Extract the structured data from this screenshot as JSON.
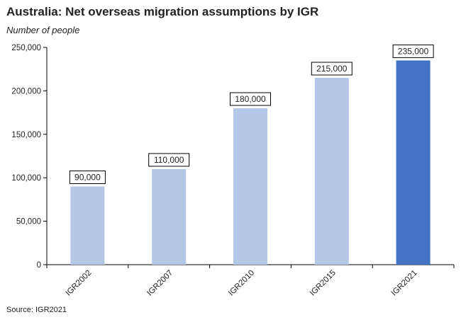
{
  "title": "Australia: Net overseas migration assumptions by IGR",
  "subtitle": "Number of people",
  "source": "Source: IGR2021",
  "chart_data": {
    "type": "bar",
    "categories": [
      "IGR2002",
      "IGR2007",
      "IGR2010",
      "IGR2015",
      "IGR2021"
    ],
    "values": [
      90000,
      110000,
      180000,
      215000,
      235000
    ],
    "data_labels": [
      "90,000",
      "110,000",
      "180,000",
      "215,000",
      "235,000"
    ],
    "ylim": [
      0,
      250000
    ],
    "yticks": [
      0,
      50000,
      100000,
      150000,
      200000,
      250000
    ],
    "ytick_labels": [
      "0",
      "50,000",
      "100,000",
      "150,000",
      "200,000",
      "250,000"
    ],
    "bar_colors": [
      "#b4c7e7",
      "#b4c7e7",
      "#b4c7e7",
      "#b4c7e7",
      "#4472c4"
    ],
    "grid": false,
    "legend": "none"
  }
}
